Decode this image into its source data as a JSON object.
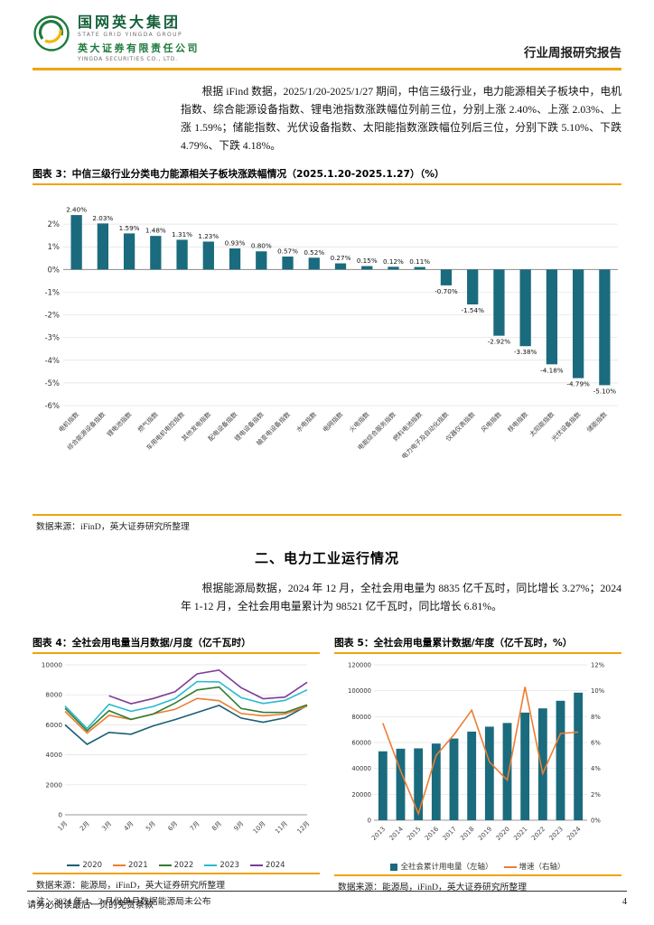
{
  "header": {
    "logo_title": "国网英大集团",
    "logo_subtitle": "STATE GRID YINGDA GROUP",
    "company": "英大证券有限责任公司",
    "company_en": "YINGDA SECURITIES CO., LTD.",
    "report_type": "行业周报研究报告"
  },
  "intro_paragraph": "根据 iFind 数据，2025/1/20-2025/1/27 期间，中信三级行业，电力能源相关子板块中，电机指数、综合能源设备指数、锂电池指数涨跌幅位列前三位，分别上涨 2.40%、上涨 2.03%、上涨 1.59%；储能指数、光伏设备指数、太阳能指数涨跌幅位列后三位，分别下跌 5.10%、下跌 4.79%、下跌 4.18%。",
  "figure3": {
    "title": "图表 3：中信三级行业分类电力能源相关子板块涨跌幅情况（2025.1.20-2025.1.27）（%）",
    "source": "数据来源：iFinD，英大证券研究所整理"
  },
  "section2": {
    "heading": "二、电力工业运行情况",
    "paragraph": "根据能源局数据，2024 年 12 月，全社会用电量为 8835 亿千瓦时，同比增长 3.27%；2024 年 1-12 月，全社会用电量累计为 98521 亿千瓦时，同比增长 6.81%。"
  },
  "figure4": {
    "title": "图表 4：全社会用电量当月数据/月度（亿千瓦时）",
    "source": "数据来源：能源局，iFinD，英大证券研究所整理",
    "note": "注：2024 年 1、2 月份单月数据能源局未公布"
  },
  "figure5": {
    "title": "图表 5：全社会用电量累计数据/年度（亿千瓦时，%）",
    "source": "数据来源：能源局，iFinD，英大证券研究所整理"
  },
  "footer": {
    "disclaimer": "请务必阅读最后一页的免责条款",
    "page_number": "4"
  },
  "colors": {
    "gold": "#f0a30a",
    "teal": "#1a6b7d",
    "brand_green": "#1f7a3e",
    "logo_yellow": "#f2b705",
    "orange": "#ed7d31"
  },
  "chart_data": [
    {
      "id": "fig3",
      "type": "bar",
      "title": "中信三级行业分类电力能源相关子板块涨跌幅情况（2025.1.20-2025.1.27）（%）",
      "categories": [
        "电机指数",
        "综合能源设备指数",
        "锂电池指数",
        "燃气指数",
        "车用电机电控指数",
        "其他发电指数",
        "配电设备指数",
        "锂电设备指数",
        "输变电设备指数",
        "水电指数",
        "电网指数",
        "火电指数",
        "电能综合服务指数",
        "燃料电池指数",
        "电力电子及自动化指数",
        "仪器仪表指数",
        "风电指数",
        "核电指数",
        "太阳能指数",
        "光伏设备指数",
        "储能指数"
      ],
      "values": [
        2.4,
        2.03,
        1.59,
        1.48,
        1.31,
        1.23,
        0.93,
        0.8,
        0.57,
        0.52,
        0.27,
        0.15,
        0.12,
        0.11,
        -0.7,
        -1.54,
        -2.92,
        -3.38,
        -4.18,
        -4.79,
        -5.1
      ],
      "ylim": [
        -6,
        3
      ],
      "yticks": [
        2,
        1,
        0,
        -1,
        -2,
        -3,
        -4,
        -5,
        -6
      ],
      "bar_color": "#1a6b7d",
      "grid": true,
      "legend_position": "none"
    },
    {
      "id": "fig4",
      "type": "line",
      "title": "全社会用电量当月数据/月度（亿千瓦时）",
      "x": [
        "1月",
        "2月",
        "3月",
        "4月",
        "5月",
        "6月",
        "7月",
        "8月",
        "9月",
        "10月",
        "11月",
        "12月"
      ],
      "ylim": [
        0,
        10000
      ],
      "yticks": [
        0,
        2000,
        4000,
        6000,
        8000,
        10000
      ],
      "grid": true,
      "legend_position": "bottom",
      "series": [
        {
          "name": "2020",
          "color": "#1a5e74",
          "values": [
            6000,
            4700,
            5493,
            5372,
            5926,
            6350,
            6824,
            7294,
            6454,
            6172,
            6467,
            7277
          ]
        },
        {
          "name": "2021",
          "color": "#ed7d31",
          "values": [
            6900,
            5450,
            6631,
            6361,
            6724,
            7033,
            7758,
            7607,
            6751,
            6603,
            6718,
            7234
          ]
        },
        {
          "name": "2022",
          "color": "#2f7d32",
          "values": [
            7100,
            5600,
            6944,
            6362,
            6716,
            7451,
            8324,
            8520,
            7092,
            6834,
            6828,
            7333
          ]
        },
        {
          "name": "2023",
          "color": "#29b9d0",
          "values": [
            7250,
            5750,
            7369,
            6901,
            7222,
            7751,
            8888,
            8861,
            7811,
            7419,
            7630,
            8330
          ]
        },
        {
          "name": "2024",
          "color": "#7d3c98",
          "values": [
            null,
            null,
            7942,
            7412,
            7751,
            8205,
            9396,
            9649,
            8475,
            7742,
            7849,
            8835
          ]
        }
      ]
    },
    {
      "id": "fig5",
      "type": "bar+line",
      "title": "全社会用电量累计数据/年度（亿千瓦时，%）",
      "categories": [
        "2013",
        "2014",
        "2015",
        "2016",
        "2017",
        "2018",
        "2019",
        "2020",
        "2021",
        "2022",
        "2023",
        "2024"
      ],
      "bar_series": {
        "name": "全社会累计用电量（左轴）",
        "color": "#1a6b7d",
        "values": [
          53223,
          55233,
          55500,
          59198,
          63077,
          68449,
          72255,
          75110,
          83128,
          86372,
          92241,
          98521
        ]
      },
      "line_series": {
        "name": "增速（右轴）",
        "color": "#ed7d31",
        "values": [
          7.5,
          3.8,
          0.5,
          5.0,
          6.6,
          8.5,
          4.5,
          3.1,
          10.3,
          3.6,
          6.7,
          6.81
        ]
      },
      "left_ylim": [
        0,
        120000
      ],
      "left_yticks": [
        0,
        20000,
        40000,
        60000,
        80000,
        100000,
        120000
      ],
      "right_ylim": [
        0,
        12
      ],
      "right_yticks": [
        "0%",
        "2%",
        "4%",
        "6%",
        "8%",
        "10%",
        "12%"
      ],
      "grid": true,
      "legend_position": "bottom"
    }
  ]
}
